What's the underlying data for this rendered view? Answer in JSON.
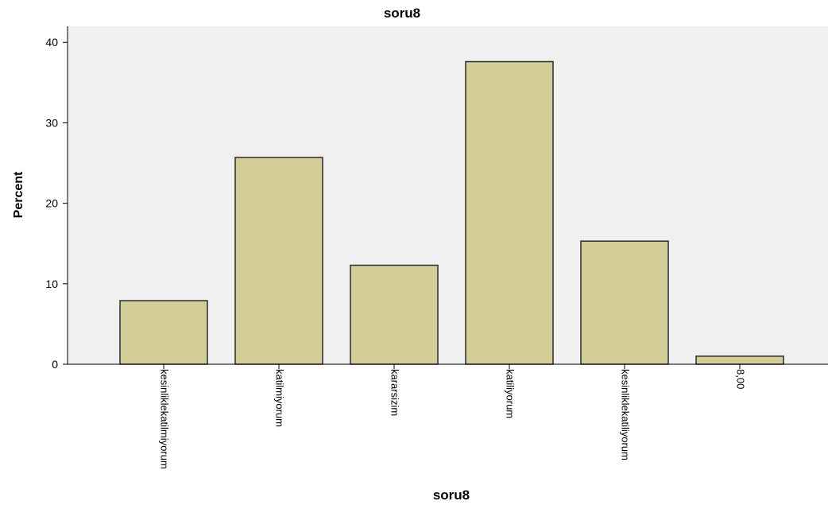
{
  "chart_data": {
    "type": "bar",
    "title": "soru8",
    "xlabel": "soru8",
    "ylabel": "Percent",
    "categories": [
      "kesinliklekatilmiyorum",
      "katilmiyorum",
      "kararsizim",
      "katiliyorum",
      "kesinliklekatiliyorum",
      "8,00"
    ],
    "values": [
      7.9,
      25.7,
      12.3,
      37.6,
      15.3,
      1.0
    ],
    "ylim": [
      0,
      42
    ],
    "yticks": [
      "0",
      "10",
      "20",
      "30",
      "40"
    ],
    "grid": false,
    "legend": "none",
    "colors": {
      "bar_fill": "#d3ce97",
      "bar_stroke": "#2b2b2b",
      "plot_background": "#f0f0f0",
      "axis": "#000000"
    }
  }
}
